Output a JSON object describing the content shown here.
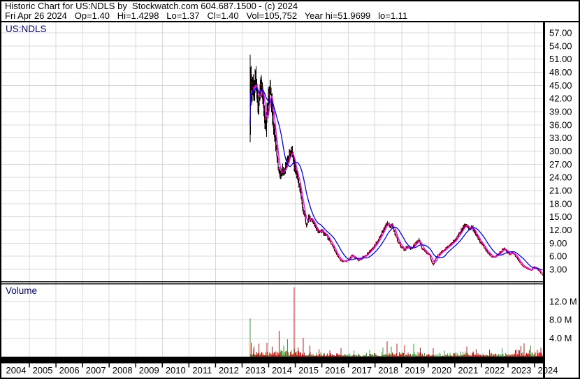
{
  "header": {
    "line1": "Historic Chart for US:NDLS by  Stockwatch.com 604.687.1500 - (c) 2024",
    "line2": "Fri Apr 26 2024   Op=1.40   Hi=1.4298   Lo=1.37   Cl=1.40   Vol=105,752   Year hi=51.9699   lo=1.11"
  },
  "style": {
    "grid": "#D8D8D8",
    "bar": "#000000",
    "tick_red": "#EE0000",
    "ma_fast": "#FF00FF",
    "ma_slow": "#0000FF",
    "vol_up": "#35A335",
    "vol_down": "#DD1414",
    "label_navy": "#000080",
    "axis_text": "#000000",
    "frame_black": "#000000"
  },
  "chart_data": {
    "type": "line",
    "subtype": "weekly-ohlc-bars-with-volume",
    "title": "US:NDLS",
    "price_pane_label": "US:NDLS",
    "volume_pane_label": "Volume",
    "x_range": [
      2004,
      2024.33
    ],
    "price_axis": {
      "ticks": [
        "57.00",
        "54.00",
        "51.00",
        "48.00",
        "45.00",
        "42.00",
        "39.00",
        "36.00",
        "33.00",
        "30.00",
        "27.00",
        "24.00",
        "21.00",
        "18.00",
        "15.00",
        "12.00",
        "9.00",
        "6.00",
        "3.00"
      ]
    },
    "volume_axis": {
      "ticks": [
        "12.0 M",
        "8.0 M",
        "4.0 M"
      ],
      "values": [
        12,
        8,
        4
      ]
    },
    "x_axis": {
      "years": [
        "2004",
        "2005",
        "2006",
        "2007",
        "2008",
        "2009",
        "2010",
        "2011",
        "2012",
        "2013",
        "2014",
        "2015",
        "2016",
        "2017",
        "2018",
        "2019",
        "2020",
        "2021",
        "2022",
        "2023",
        "2024"
      ]
    },
    "grid": true,
    "ipo_bar": {
      "t": 2013.3,
      "high": 52.0,
      "low": 32.0
    },
    "ma_fast": {
      "window": 8
    },
    "ma_slow": {
      "window": 26
    },
    "series": [
      {
        "name": "US:NDLS weekly close keypoints (t, USD)",
        "points": [
          [
            2013.3,
            36
          ],
          [
            2013.32,
            48
          ],
          [
            2013.36,
            42
          ],
          [
            2013.4,
            46
          ],
          [
            2013.45,
            43
          ],
          [
            2013.5,
            47
          ],
          [
            2013.55,
            44
          ],
          [
            2013.6,
            40
          ],
          [
            2013.65,
            43
          ],
          [
            2013.7,
            46
          ],
          [
            2013.75,
            44
          ],
          [
            2013.8,
            40
          ],
          [
            2013.85,
            37
          ],
          [
            2013.9,
            36
          ],
          [
            2013.95,
            39
          ],
          [
            2014.0,
            43
          ],
          [
            2014.05,
            44
          ],
          [
            2014.1,
            41
          ],
          [
            2014.15,
            38
          ],
          [
            2014.2,
            35
          ],
          [
            2014.28,
            31
          ],
          [
            2014.35,
            27
          ],
          [
            2014.42,
            24
          ],
          [
            2014.5,
            26
          ],
          [
            2014.58,
            25
          ],
          [
            2014.65,
            27
          ],
          [
            2014.72,
            28
          ],
          [
            2014.8,
            29
          ],
          [
            2014.88,
            30
          ],
          [
            2014.95,
            27
          ],
          [
            2015.05,
            25
          ],
          [
            2015.12,
            23
          ],
          [
            2015.2,
            20
          ],
          [
            2015.28,
            17
          ],
          [
            2015.35,
            15
          ],
          [
            2015.42,
            13
          ],
          [
            2015.5,
            15
          ],
          [
            2015.6,
            14.5
          ],
          [
            2015.7,
            13.5
          ],
          [
            2015.8,
            12
          ],
          [
            2015.9,
            11.5
          ],
          [
            2016.0,
            12
          ],
          [
            2016.1,
            11
          ],
          [
            2016.2,
            10.5
          ],
          [
            2016.3,
            9.5
          ],
          [
            2016.4,
            8.5
          ],
          [
            2016.5,
            7
          ],
          [
            2016.6,
            6
          ],
          [
            2016.72,
            5
          ],
          [
            2016.85,
            4.8
          ],
          [
            2017.0,
            5.2
          ],
          [
            2017.15,
            6.3
          ],
          [
            2017.25,
            5.6
          ],
          [
            2017.4,
            5
          ],
          [
            2017.55,
            5.8
          ],
          [
            2017.7,
            6.5
          ],
          [
            2017.85,
            7.5
          ],
          [
            2018.0,
            8.5
          ],
          [
            2018.15,
            10
          ],
          [
            2018.3,
            12
          ],
          [
            2018.45,
            13.5
          ],
          [
            2018.55,
            12.8
          ],
          [
            2018.65,
            13.2
          ],
          [
            2018.75,
            11
          ],
          [
            2018.85,
            9.5
          ],
          [
            2019.0,
            8
          ],
          [
            2019.1,
            7.5
          ],
          [
            2019.2,
            8.2
          ],
          [
            2019.35,
            7.6
          ],
          [
            2019.5,
            8.8
          ],
          [
            2019.65,
            9.8
          ],
          [
            2019.75,
            8
          ],
          [
            2019.9,
            7
          ],
          [
            2020.05,
            6.2
          ],
          [
            2020.18,
            4
          ],
          [
            2020.3,
            5.8
          ],
          [
            2020.45,
            6.8
          ],
          [
            2020.6,
            7.5
          ],
          [
            2020.75,
            8.2
          ],
          [
            2020.9,
            9
          ],
          [
            2021.05,
            10
          ],
          [
            2021.2,
            11.5
          ],
          [
            2021.35,
            12.8
          ],
          [
            2021.45,
            13.3
          ],
          [
            2021.55,
            12.3
          ],
          [
            2021.65,
            12.6
          ],
          [
            2021.75,
            11.5
          ],
          [
            2021.85,
            10.5
          ],
          [
            2021.95,
            9.5
          ],
          [
            2022.05,
            8.5
          ],
          [
            2022.15,
            7.5
          ],
          [
            2022.25,
            6.8
          ],
          [
            2022.38,
            6.0
          ],
          [
            2022.5,
            5.8
          ],
          [
            2022.62,
            6.4
          ],
          [
            2022.75,
            7.1
          ],
          [
            2022.85,
            7.9
          ],
          [
            2022.95,
            7.0
          ],
          [
            2023.05,
            6.5
          ],
          [
            2023.18,
            6.8
          ],
          [
            2023.3,
            6.0
          ],
          [
            2023.4,
            5.0
          ],
          [
            2023.5,
            4.2
          ],
          [
            2023.6,
            3.6
          ],
          [
            2023.75,
            3.1
          ],
          [
            2023.88,
            2.8
          ],
          [
            2023.98,
            3.7
          ],
          [
            2024.08,
            3.2
          ],
          [
            2024.18,
            2.5
          ],
          [
            2024.28,
            1.9
          ],
          [
            2024.315,
            1.45
          ]
        ]
      },
      {
        "name": "weekly volume envelope (t, millions)",
        "points": [
          [
            2013.3,
            1.3
          ],
          [
            2013.8,
            0.9
          ],
          [
            2014.5,
            0.9
          ],
          [
            2015.0,
            1.1
          ],
          [
            2015.5,
            0.7
          ],
          [
            2016.0,
            0.55
          ],
          [
            2016.8,
            0.5
          ],
          [
            2017.5,
            0.45
          ],
          [
            2018.0,
            0.6
          ],
          [
            2018.5,
            0.85
          ],
          [
            2019.0,
            0.6
          ],
          [
            2019.5,
            0.65
          ],
          [
            2020.0,
            0.5
          ],
          [
            2020.5,
            0.5
          ],
          [
            2021.0,
            0.6
          ],
          [
            2021.5,
            0.7
          ],
          [
            2022.0,
            0.55
          ],
          [
            2022.5,
            0.55
          ],
          [
            2023.0,
            0.6
          ],
          [
            2023.5,
            0.9
          ],
          [
            2024.0,
            0.8
          ],
          [
            2024.315,
            0.9
          ]
        ]
      }
    ],
    "volume_spikes": [
      [
        2013.3,
        8.3,
        "up"
      ],
      [
        2013.33,
        3.0,
        "down"
      ],
      [
        2013.46,
        2.2,
        "down"
      ],
      [
        2013.62,
        2.8,
        "down"
      ],
      [
        2013.93,
        3.0,
        "down"
      ],
      [
        2014.12,
        2.2,
        "down"
      ],
      [
        2014.4,
        5.6,
        "down"
      ],
      [
        2014.56,
        2.4,
        "up"
      ],
      [
        2014.7,
        3.8,
        "up"
      ],
      [
        2014.95,
        15.1,
        "down"
      ],
      [
        2015.1,
        2.0,
        "down"
      ],
      [
        2015.3,
        4.1,
        "down"
      ],
      [
        2015.55,
        2.4,
        "down"
      ],
      [
        2015.9,
        1.6,
        "down"
      ],
      [
        2016.3,
        1.4,
        "down"
      ],
      [
        2016.72,
        1.8,
        "down"
      ],
      [
        2017.2,
        1.3,
        "up"
      ],
      [
        2017.8,
        1.5,
        "up"
      ],
      [
        2018.3,
        2.0,
        "up"
      ],
      [
        2018.46,
        3.3,
        "down"
      ],
      [
        2018.6,
        2.2,
        "up"
      ],
      [
        2018.82,
        2.8,
        "down"
      ],
      [
        2019.1,
        2.5,
        "down"
      ],
      [
        2019.45,
        2.8,
        "up"
      ],
      [
        2019.7,
        2.0,
        "down"
      ],
      [
        2020.18,
        1.8,
        "down"
      ],
      [
        2020.6,
        1.3,
        "up"
      ],
      [
        2021.45,
        2.2,
        "down"
      ],
      [
        2021.8,
        1.6,
        "down"
      ],
      [
        2022.3,
        1.5,
        "down"
      ],
      [
        2022.78,
        1.8,
        "up"
      ],
      [
        2023.3,
        1.6,
        "down"
      ],
      [
        2023.5,
        2.3,
        "down"
      ],
      [
        2023.6,
        2.9,
        "down"
      ],
      [
        2023.85,
        2.4,
        "up"
      ],
      [
        2024.1,
        1.5,
        "down"
      ],
      [
        2024.25,
        2.0,
        "down"
      ]
    ]
  }
}
